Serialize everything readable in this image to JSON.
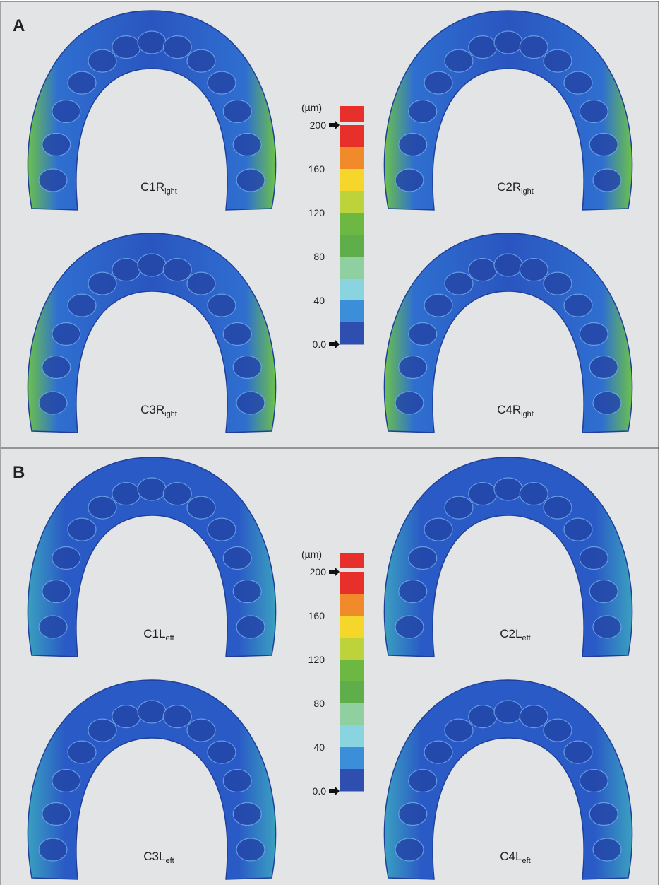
{
  "panels": [
    {
      "label": "A",
      "models": [
        {
          "name": "C1R",
          "sub": "ight"
        },
        {
          "name": "C2R",
          "sub": "ight"
        },
        {
          "name": "C3R",
          "sub": "ight"
        },
        {
          "name": "C4R",
          "sub": "ight"
        }
      ],
      "scale": {
        "unit": "(µm)",
        "ticks": [
          "200",
          "160",
          "120",
          "80",
          "40",
          "0.0"
        ]
      }
    },
    {
      "label": "B",
      "models": [
        {
          "name": "C1L",
          "sub": "eft"
        },
        {
          "name": "C2L",
          "sub": "eft"
        },
        {
          "name": "C3L",
          "sub": "eft"
        },
        {
          "name": "C4L",
          "sub": "eft"
        }
      ],
      "scale": {
        "unit": "(µm)",
        "ticks": [
          "200",
          "160",
          "120",
          "80",
          "40",
          "0.0"
        ]
      }
    }
  ]
}
